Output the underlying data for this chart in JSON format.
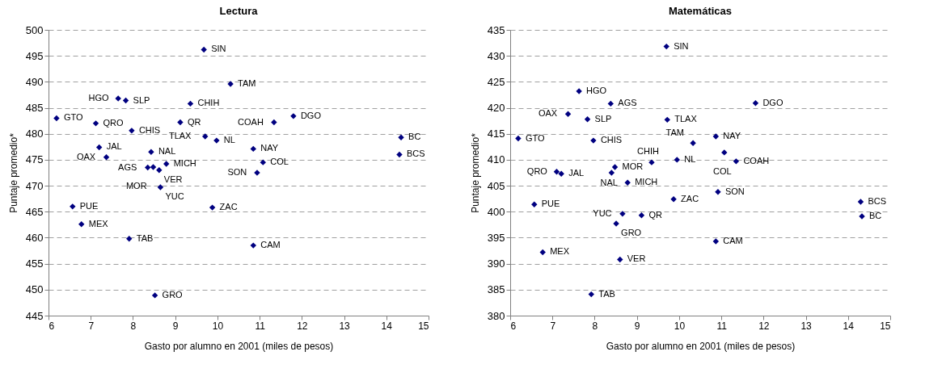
{
  "chart_data": [
    {
      "type": "scatter",
      "title": "Lectura",
      "xlabel": "Gasto por alumno en 2001 (miles de pesos)",
      "ylabel": "Puntaje promedio*",
      "xlim": [
        6,
        15
      ],
      "xticks": [
        6,
        7,
        8,
        9,
        10,
        11,
        12,
        13,
        14,
        15
      ],
      "ylim": [
        445,
        500
      ],
      "yticks": [
        445,
        450,
        455,
        460,
        465,
        470,
        475,
        480,
        485,
        490,
        495,
        500
      ],
      "grid": "y",
      "marker": "diamond",
      "series": [
        {
          "color": "#000080",
          "x": [
            6.19,
            7.12,
            7.65,
            7.83,
            7.97,
            7.2,
            7.37,
            6.57,
            6.78,
            7.91,
            8.43,
            8.35,
            8.48,
            8.62,
            8.79,
            8.65,
            8.52,
            9.68,
            9.36,
            9.12,
            9.71,
            9.98,
            9.88,
            10.31,
            11.8,
            11.34,
            10.85,
            11.08,
            10.94,
            10.85,
            14.35,
            14.31
          ],
          "values": [
            483.0,
            482.0,
            486.8,
            486.4,
            480.6,
            477.4,
            475.5,
            466.0,
            462.6,
            459.8,
            476.5,
            473.5,
            473.6,
            473.0,
            474.2,
            469.7,
            448.9,
            496.2,
            485.8,
            482.2,
            479.5,
            478.7,
            465.8,
            489.6,
            483.4,
            482.2,
            477.1,
            474.5,
            472.5,
            458.5,
            479.3,
            476.0
          ]
        }
      ],
      "annotations": [
        {
          "text": "GTO",
          "x": 6.19,
          "y": 483.0
        },
        {
          "text": "QRO",
          "x": 7.12,
          "y": 482.0
        },
        {
          "text": "HGO",
          "x": 7.65,
          "y": 486.8
        },
        {
          "text": "SLP",
          "x": 7.83,
          "y": 486.4
        },
        {
          "text": "CHIS",
          "x": 7.97,
          "y": 480.6
        },
        {
          "text": "JAL",
          "x": 7.2,
          "y": 477.4
        },
        {
          "text": "OAX",
          "x": 7.37,
          "y": 475.5
        },
        {
          "text": "PUE",
          "x": 6.57,
          "y": 466.0
        },
        {
          "text": "MEX",
          "x": 6.78,
          "y": 462.6
        },
        {
          "text": "TAB",
          "x": 7.91,
          "y": 459.8
        },
        {
          "text": "NAL",
          "x": 8.43,
          "y": 476.5
        },
        {
          "text": "AGS",
          "x": 8.35,
          "y": 473.5
        },
        {
          "text": "MOR",
          "x": 8.48,
          "y": 473.6
        },
        {
          "text": "VER",
          "x": 8.62,
          "y": 473.0
        },
        {
          "text": "MICH",
          "x": 8.79,
          "y": 474.2
        },
        {
          "text": "YUC",
          "x": 8.65,
          "y": 469.7
        },
        {
          "text": "GRO",
          "x": 8.52,
          "y": 448.9
        },
        {
          "text": "SIN",
          "x": 9.68,
          "y": 496.2
        },
        {
          "text": "CHIH",
          "x": 9.36,
          "y": 485.8
        },
        {
          "text": "QR",
          "x": 9.12,
          "y": 482.2
        },
        {
          "text": "TLAX",
          "x": 9.71,
          "y": 479.5
        },
        {
          "text": "NL",
          "x": 9.98,
          "y": 478.7
        },
        {
          "text": "ZAC",
          "x": 9.88,
          "y": 465.8
        },
        {
          "text": "TAM",
          "x": 10.31,
          "y": 489.6
        },
        {
          "text": "DGO",
          "x": 11.8,
          "y": 483.4
        },
        {
          "text": "COAH",
          "x": 11.34,
          "y": 482.2
        },
        {
          "text": "NAY",
          "x": 10.85,
          "y": 477.1
        },
        {
          "text": "COL",
          "x": 11.08,
          "y": 474.5
        },
        {
          "text": "SON",
          "x": 10.94,
          "y": 472.5
        },
        {
          "text": "CAM",
          "x": 10.85,
          "y": 458.5
        },
        {
          "text": "BC",
          "x": 14.35,
          "y": 479.3
        },
        {
          "text": "BCS",
          "x": 14.31,
          "y": 476.0
        }
      ]
    },
    {
      "type": "scatter",
      "title": "Matemáticas",
      "xlabel": "Gasto por alumno en 2001 (miles de pesos)",
      "ylabel": "Puntaje promedio*",
      "xlim": [
        6,
        15
      ],
      "xticks": [
        6,
        7,
        8,
        9,
        10,
        11,
        12,
        13,
        14,
        15
      ],
      "ylim": [
        380,
        435
      ],
      "yticks": [
        380,
        385,
        390,
        395,
        400,
        405,
        410,
        415,
        420,
        425,
        430,
        435
      ],
      "grid": "y",
      "marker": "diamond",
      "series": [
        {
          "color": "#000080",
          "x": [
            6.19,
            6.57,
            6.77,
            7.1,
            7.21,
            7.37,
            7.63,
            7.83,
            7.97,
            7.92,
            8.38,
            8.48,
            8.4,
            8.78,
            8.66,
            8.51,
            9.11,
            8.6,
            9.35,
            9.7,
            9.72,
            9.95,
            9.87,
            10.33,
            10.87,
            11.07,
            11.35,
            11.81,
            10.92,
            10.87,
            14.3,
            14.33
          ],
          "values": [
            414.1,
            401.4,
            392.2,
            407.7,
            407.3,
            418.8,
            423.2,
            417.8,
            413.7,
            384.1,
            420.8,
            408.6,
            407.5,
            405.6,
            399.6,
            397.7,
            399.3,
            390.8,
            409.5,
            431.8,
            417.7,
            410.0,
            402.4,
            413.2,
            414.5,
            411.4,
            409.7,
            420.9,
            403.8,
            394.3,
            401.9,
            399.1
          ]
        }
      ],
      "annotations": [
        {
          "text": "GTO",
          "x": 6.19,
          "y": 414.1
        },
        {
          "text": "PUE",
          "x": 6.57,
          "y": 401.4
        },
        {
          "text": "MEX",
          "x": 6.77,
          "y": 392.2
        },
        {
          "text": "QRO",
          "x": 7.1,
          "y": 407.7
        },
        {
          "text": "JAL",
          "x": 7.21,
          "y": 407.3
        },
        {
          "text": "OAX",
          "x": 7.37,
          "y": 418.8
        },
        {
          "text": "HGO",
          "x": 7.63,
          "y": 423.2
        },
        {
          "text": "SLP",
          "x": 7.83,
          "y": 417.8
        },
        {
          "text": "CHIS",
          "x": 7.97,
          "y": 413.7
        },
        {
          "text": "TAB",
          "x": 7.92,
          "y": 384.1
        },
        {
          "text": "AGS",
          "x": 8.38,
          "y": 420.8
        },
        {
          "text": "MOR",
          "x": 8.48,
          "y": 408.6
        },
        {
          "text": "NAL",
          "x": 8.4,
          "y": 407.5
        },
        {
          "text": "MICH",
          "x": 8.78,
          "y": 405.6
        },
        {
          "text": "YUC",
          "x": 8.66,
          "y": 399.6
        },
        {
          "text": "GRO",
          "x": 8.51,
          "y": 397.7
        },
        {
          "text": "QR",
          "x": 9.11,
          "y": 399.3
        },
        {
          "text": "VER",
          "x": 8.6,
          "y": 390.8
        },
        {
          "text": "CHIH",
          "x": 9.35,
          "y": 409.5
        },
        {
          "text": "SIN",
          "x": 9.7,
          "y": 431.8
        },
        {
          "text": "TLAX",
          "x": 9.72,
          "y": 417.7
        },
        {
          "text": "NL",
          "x": 9.95,
          "y": 410.0
        },
        {
          "text": "ZAC",
          "x": 9.87,
          "y": 402.4
        },
        {
          "text": "TAM",
          "x": 10.33,
          "y": 413.2
        },
        {
          "text": "NAY",
          "x": 10.87,
          "y": 414.5
        },
        {
          "text": "COL",
          "x": 11.07,
          "y": 411.4
        },
        {
          "text": "COAH",
          "x": 11.35,
          "y": 409.7
        },
        {
          "text": "DGO",
          "x": 11.81,
          "y": 420.9
        },
        {
          "text": "SON",
          "x": 10.92,
          "y": 403.8
        },
        {
          "text": "CAM",
          "x": 10.87,
          "y": 394.3
        },
        {
          "text": "BCS",
          "x": 14.3,
          "y": 401.9
        },
        {
          "text": "BC",
          "x": 14.33,
          "y": 399.1
        }
      ]
    }
  ]
}
